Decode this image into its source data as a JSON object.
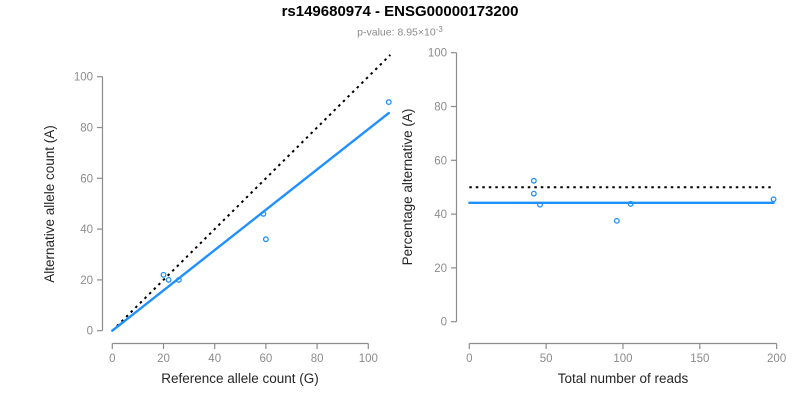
{
  "header": {
    "title": "rs149680974 - ENSG00000173200",
    "subtitle_text": "p-value: 8.95×10",
    "subtitle_exponent": "-3"
  },
  "colors": {
    "accent_blue": "#1E90FF",
    "axis_line": "#8C8C8C",
    "tick_label": "#8C8C8C",
    "axis_title": "#262626",
    "title_text": "#000000",
    "dotted_line": "#000000"
  },
  "chart_data": [
    {
      "id": "allele-counts-scatter",
      "type": "scatter",
      "xlabel": "Reference allele count (G)",
      "ylabel": "Alternative allele count (A)",
      "xticks": [
        0,
        20,
        40,
        60,
        80,
        100
      ],
      "yticks": [
        0,
        20,
        40,
        60,
        80,
        100
      ],
      "xlim": [
        0,
        108.6
      ],
      "ylim": [
        0,
        108.6
      ],
      "grid": false,
      "legend": null,
      "points": [
        [
          20,
          22
        ],
        [
          22,
          20
        ],
        [
          26,
          20
        ],
        [
          59,
          46
        ],
        [
          60,
          36
        ],
        [
          108,
          90
        ]
      ],
      "lines": [
        {
          "name": "identity-line",
          "style": "dotted",
          "color": "#000000",
          "from": [
            0,
            0
          ],
          "to": [
            108.6,
            108.6
          ]
        },
        {
          "name": "fit-line",
          "style": "solid",
          "color": "#1E90FF",
          "from": [
            0,
            0
          ],
          "to": [
            108,
            85.7
          ]
        }
      ]
    },
    {
      "id": "percentage-alternative-scatter",
      "type": "scatter",
      "xlabel": "Total number of reads",
      "ylabel": "Percentage alternative (A)",
      "xticks": [
        0,
        50,
        100,
        150,
        200
      ],
      "yticks": [
        0,
        20,
        40,
        60,
        80,
        100
      ],
      "xlim": [
        0,
        208
      ],
      "ylim": [
        0,
        100
      ],
      "grid": false,
      "legend": null,
      "points": [
        [
          42,
          52.4
        ],
        [
          42,
          47.6
        ],
        [
          46,
          43.5
        ],
        [
          96,
          37.5
        ],
        [
          105,
          43.8
        ],
        [
          198,
          45.5
        ]
      ],
      "lines": [
        {
          "name": "fifty-percent-line",
          "style": "dotted",
          "color": "#000000",
          "from": [
            0,
            50
          ],
          "to": [
            198,
            50
          ]
        },
        {
          "name": "mean-percentage-line",
          "style": "solid",
          "color": "#1E90FF",
          "from": [
            0,
            44.2
          ],
          "to": [
            198,
            44.2
          ]
        }
      ]
    }
  ]
}
